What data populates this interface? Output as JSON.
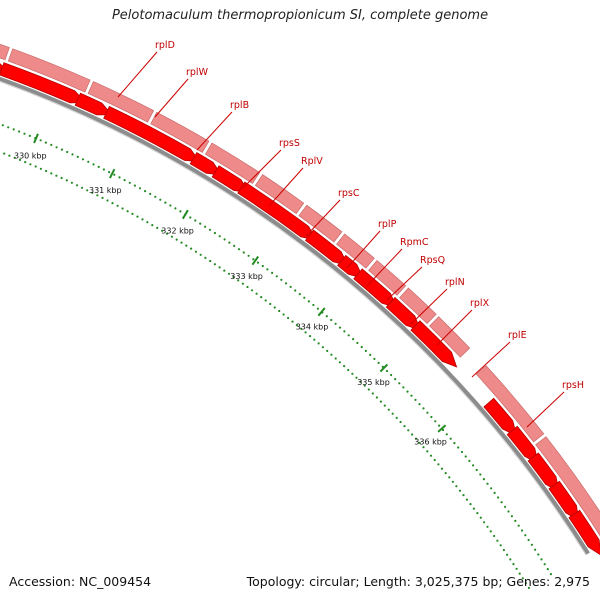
{
  "title": "Pelotomaculum thermopropionicum SI, complete genome",
  "accession_text": "Accession: NC_009454",
  "stats_text": "Topology: circular; Length: 3,025,375 bp; Genes: 2,975",
  "ticks": [
    "330 kbp",
    "331 kbp",
    "332 kbp",
    "333 kbp",
    "334 kbp",
    "335 kbp",
    "336 kbp"
  ],
  "genes": [
    "rplD",
    "rplW",
    "rplB",
    "rpsS",
    "RplV",
    "rpsC",
    "rplP",
    "RpmC",
    "RpsQ",
    "rplN",
    "rplX",
    "rplE",
    "rpsH"
  ],
  "colors": {
    "gene_fill": "#ff0000",
    "gene_stroke": "#b40000",
    "outer_fill": "#ee8a8a",
    "label": "#c00000",
    "tick": "#228b22",
    "backbone": "#8c8c8c"
  }
}
